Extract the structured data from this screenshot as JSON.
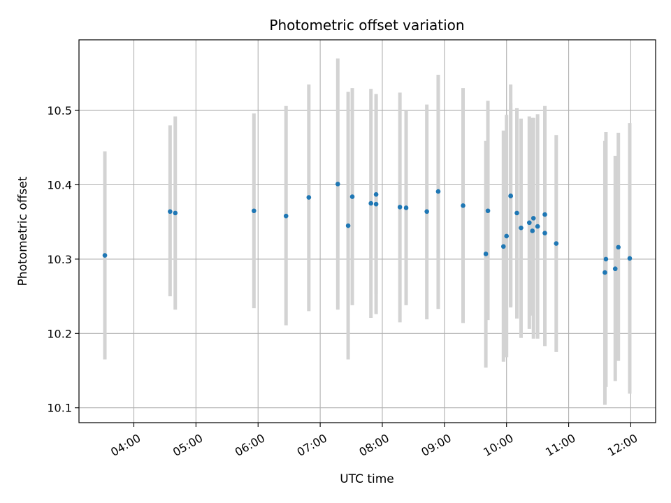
{
  "chart_data": {
    "type": "scatter",
    "title": "Photometric offset variation",
    "xlabel": "UTC time",
    "ylabel": "Photometric offset",
    "x_ticks": [
      "04:00",
      "05:00",
      "06:00",
      "07:00",
      "08:00",
      "09:00",
      "10:00",
      "11:00",
      "12:00"
    ],
    "y_ticks": [
      "10.1",
      "10.2",
      "10.3",
      "10.4",
      "10.5"
    ],
    "xlim": [
      "03:07",
      "12:24"
    ],
    "ylim": [
      10.08,
      10.595
    ],
    "grid": true,
    "colors": {
      "points": "#1f77b4",
      "errorbars": "#d3d3d3",
      "grid": "#b0b0b0"
    },
    "points": [
      {
        "t": "03:32",
        "y": 10.305,
        "lo": 10.165,
        "hi": 10.445
      },
      {
        "t": "04:35",
        "y": 10.364,
        "lo": 10.25,
        "hi": 10.48
      },
      {
        "t": "04:40",
        "y": 10.362,
        "lo": 10.232,
        "hi": 10.492
      },
      {
        "t": "05:56",
        "y": 10.365,
        "lo": 10.234,
        "hi": 10.496
      },
      {
        "t": "06:27",
        "y": 10.358,
        "lo": 10.211,
        "hi": 10.506
      },
      {
        "t": "06:49",
        "y": 10.383,
        "lo": 10.23,
        "hi": 10.535
      },
      {
        "t": "07:17",
        "y": 10.401,
        "lo": 10.232,
        "hi": 10.57
      },
      {
        "t": "07:27",
        "y": 10.345,
        "lo": 10.165,
        "hi": 10.525
      },
      {
        "t": "07:31",
        "y": 10.384,
        "lo": 10.238,
        "hi": 10.53
      },
      {
        "t": "07:49",
        "y": 10.375,
        "lo": 10.221,
        "hi": 10.529
      },
      {
        "t": "07:54",
        "y": 10.374,
        "lo": 10.226,
        "hi": 10.522
      },
      {
        "t": "07:54",
        "y": 10.387,
        "lo": 10.253,
        "hi": 10.52
      },
      {
        "t": "08:17",
        "y": 10.37,
        "lo": 10.215,
        "hi": 10.524
      },
      {
        "t": "08:23",
        "y": 10.369,
        "lo": 10.238,
        "hi": 10.5
      },
      {
        "t": "08:43",
        "y": 10.364,
        "lo": 10.219,
        "hi": 10.508
      },
      {
        "t": "08:54",
        "y": 10.391,
        "lo": 10.233,
        "hi": 10.548
      },
      {
        "t": "09:18",
        "y": 10.372,
        "lo": 10.214,
        "hi": 10.53
      },
      {
        "t": "09:40",
        "y": 10.307,
        "lo": 10.154,
        "hi": 10.459
      },
      {
        "t": "09:42",
        "y": 10.365,
        "lo": 10.218,
        "hi": 10.513
      },
      {
        "t": "09:57",
        "y": 10.317,
        "lo": 10.162,
        "hi": 10.473
      },
      {
        "t": "10:00",
        "y": 10.331,
        "lo": 10.168,
        "hi": 10.494
      },
      {
        "t": "10:04",
        "y": 10.385,
        "lo": 10.235,
        "hi": 10.535
      },
      {
        "t": "10:04",
        "y": 10.385,
        "lo": 10.237,
        "hi": 10.51
      },
      {
        "t": "10:10",
        "y": 10.362,
        "lo": 10.22,
        "hi": 10.503
      },
      {
        "t": "10:14",
        "y": 10.342,
        "lo": 10.194,
        "hi": 10.489
      },
      {
        "t": "10:22",
        "y": 10.349,
        "lo": 10.206,
        "hi": 10.492
      },
      {
        "t": "10:25",
        "y": 10.338,
        "lo": 10.224,
        "hi": 10.49
      },
      {
        "t": "10:26",
        "y": 10.355,
        "lo": 10.193,
        "hi": 10.49
      },
      {
        "t": "10:30",
        "y": 10.344,
        "lo": 10.193,
        "hi": 10.495
      },
      {
        "t": "10:37",
        "y": 10.36,
        "lo": 10.245,
        "hi": 10.506
      },
      {
        "t": "10:37",
        "y": 10.335,
        "lo": 10.183,
        "hi": 10.49
      },
      {
        "t": "10:48",
        "y": 10.321,
        "lo": 10.175,
        "hi": 10.467
      },
      {
        "t": "11:35",
        "y": 10.282,
        "lo": 10.104,
        "hi": 10.459
      },
      {
        "t": "11:36",
        "y": 10.3,
        "lo": 10.128,
        "hi": 10.471
      },
      {
        "t": "11:45",
        "y": 10.287,
        "lo": 10.136,
        "hi": 10.439
      },
      {
        "t": "11:48",
        "y": 10.316,
        "lo": 10.163,
        "hi": 10.47
      },
      {
        "t": "11:59",
        "y": 10.301,
        "lo": 10.119,
        "hi": 10.483
      }
    ]
  }
}
